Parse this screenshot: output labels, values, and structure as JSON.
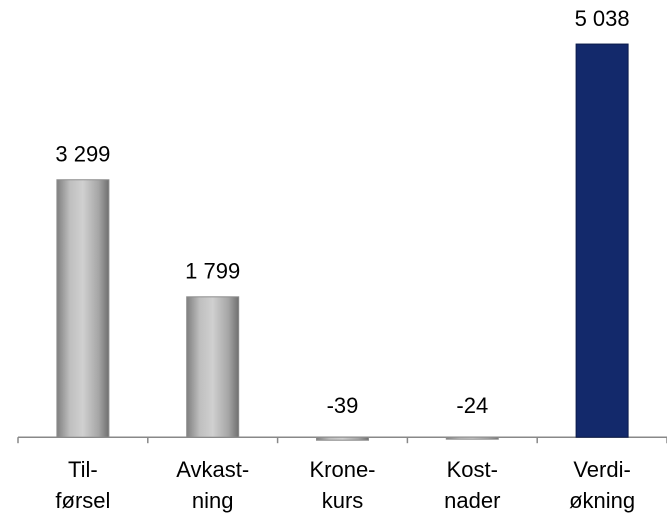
{
  "chart_data": {
    "type": "bar",
    "categories": [
      [
        "Til-",
        "førsel"
      ],
      [
        "Avkast-",
        "ning"
      ],
      [
        "Krone-",
        "kurs"
      ],
      [
        "Kost-",
        "nader"
      ],
      [
        "Verdi-",
        "økning"
      ]
    ],
    "values": [
      3299,
      1799,
      -39,
      -24,
      5038
    ],
    "value_labels": [
      "3 299",
      "1 799",
      "-39",
      "-24",
      "5 038"
    ],
    "colors": [
      "#a6a6a6",
      "#a6a6a6",
      "#a6a6a6",
      "#a6a6a6",
      "#13296b"
    ],
    "ylim": [
      -100,
      5500
    ]
  }
}
